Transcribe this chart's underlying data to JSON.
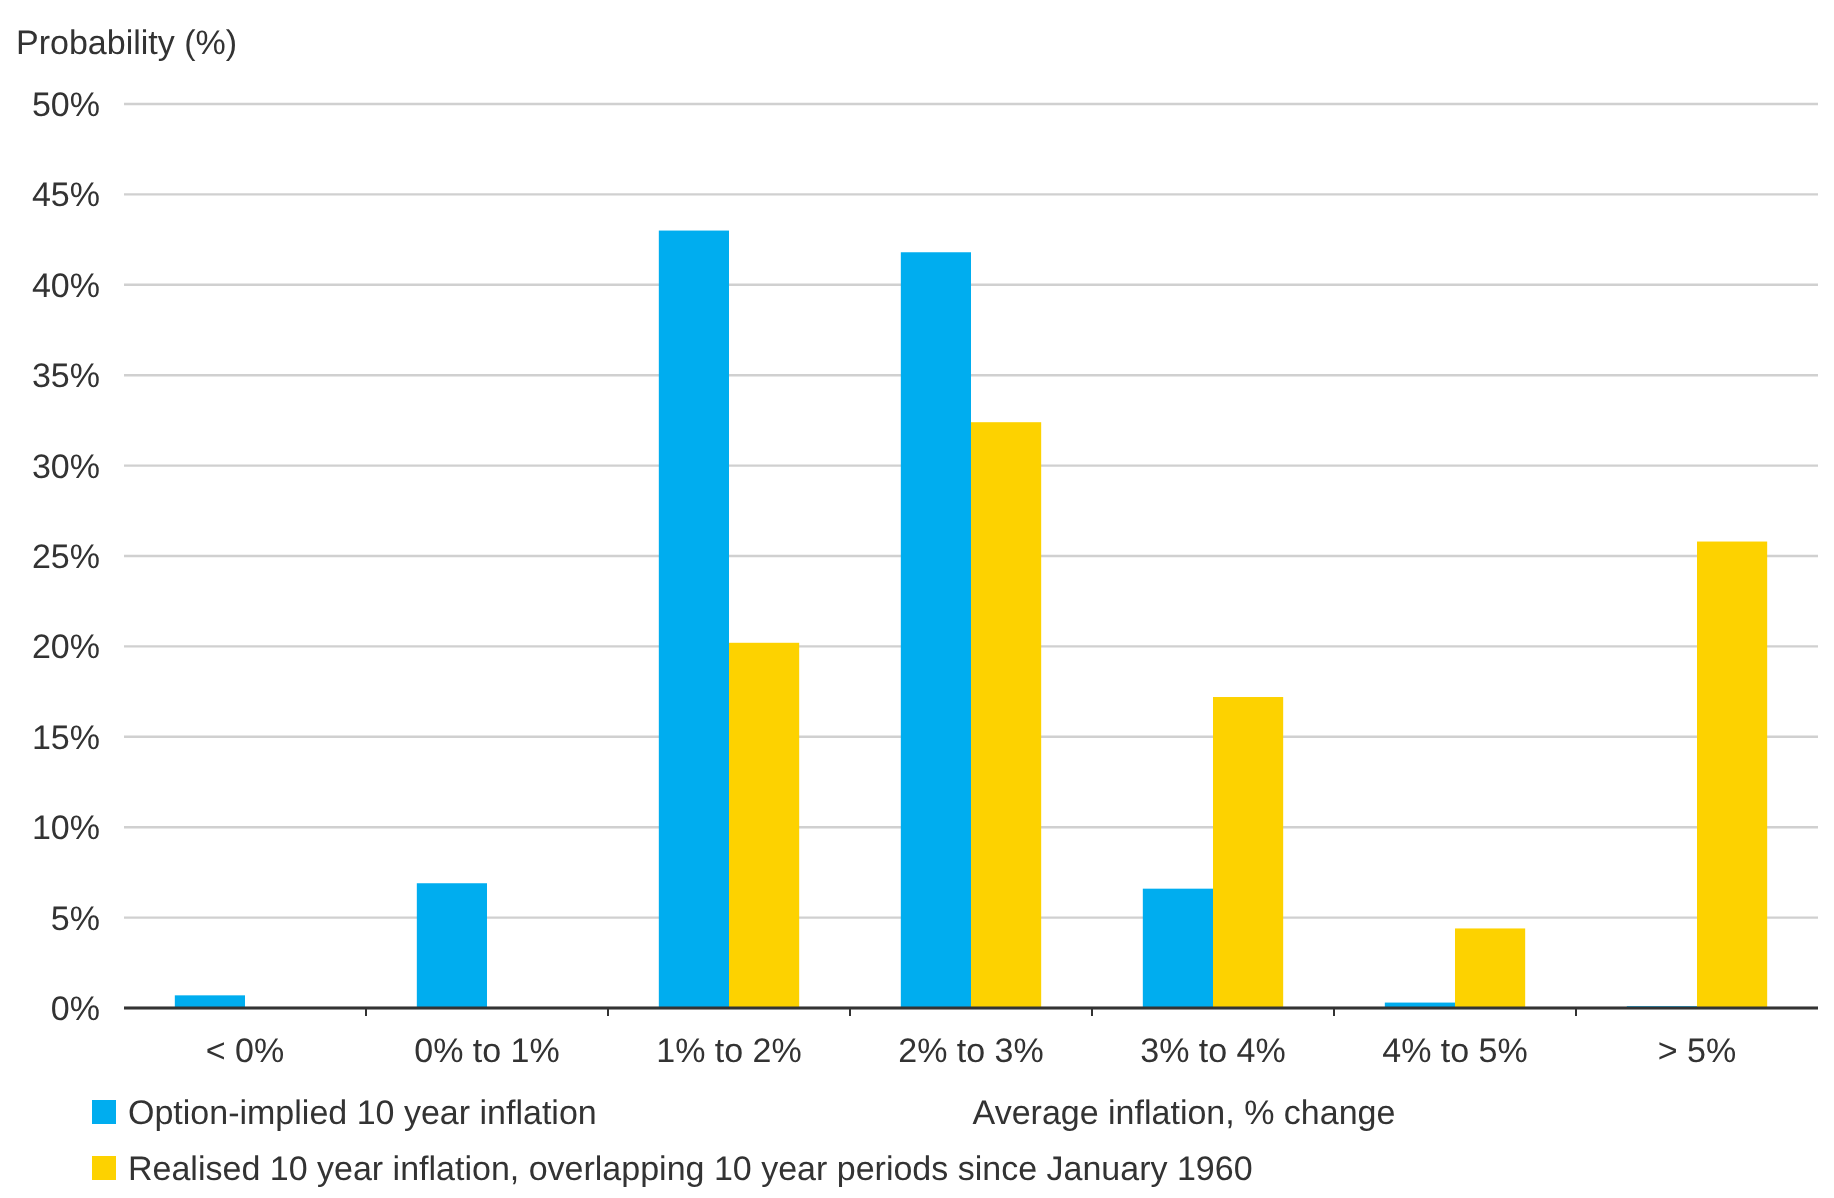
{
  "chart_data": {
    "type": "bar",
    "ylabel": "Probability (%)",
    "xlabel": "Average inflation, % change",
    "categories": [
      "< 0%",
      "0% to 1%",
      "1% to 2%",
      "2% to 3%",
      "3% to 4%",
      "4% to 5%",
      "> 5%"
    ],
    "series": [
      {
        "name": "Option-implied 10 year inflation",
        "color": "#00adef",
        "values": [
          0.7,
          6.9,
          43.0,
          41.8,
          6.6,
          0.3,
          0.1
        ]
      },
      {
        "name": "Realised 10 year inflation, overlapping 10 year periods since January 1960",
        "color": "#fdd200",
        "values": [
          0,
          0,
          20.2,
          32.4,
          17.2,
          4.4,
          25.8
        ]
      }
    ],
    "ylim": [
      0,
      50
    ],
    "yticks": [
      {
        "value": 0,
        "label": "0%"
      },
      {
        "value": 5,
        "label": "5%"
      },
      {
        "value": 10,
        "label": "10%"
      },
      {
        "value": 15,
        "label": "15%"
      },
      {
        "value": 20,
        "label": "20%"
      },
      {
        "value": 25,
        "label": "25%"
      },
      {
        "value": 30,
        "label": "30%"
      },
      {
        "value": 35,
        "label": "35%"
      },
      {
        "value": 40,
        "label": "40%"
      },
      {
        "value": 45,
        "label": "45%"
      },
      {
        "value": 50,
        "label": "50%"
      }
    ],
    "grid": "y",
    "legend": "bottom left"
  }
}
